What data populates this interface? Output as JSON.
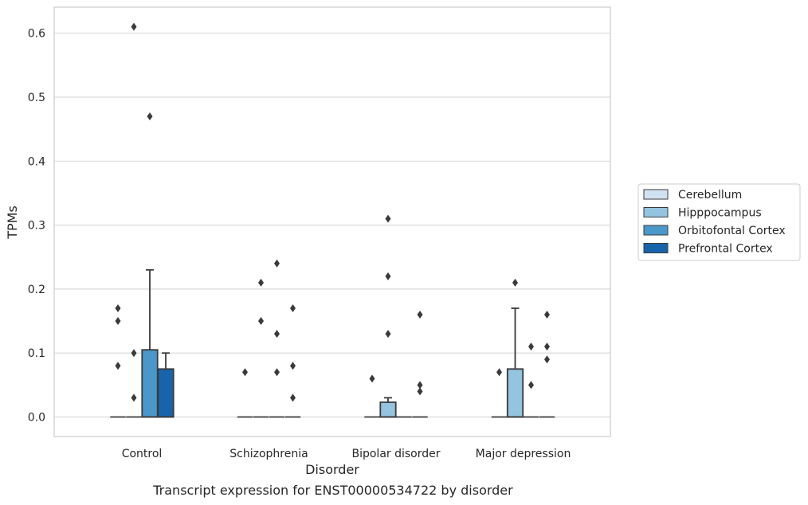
{
  "caption": "Transcript expression for ENST00000534722 by disorder",
  "chart_data": {
    "type": "box",
    "xlabel": "Disorder",
    "ylabel": "TPMs",
    "ylim": [
      -0.03,
      0.64
    ],
    "yticks": [
      0.0,
      0.1,
      0.2,
      0.3,
      0.4,
      0.5,
      0.6
    ],
    "ytick_labels": [
      "0.0",
      "0.1",
      "0.2",
      "0.3",
      "0.4",
      "0.5",
      "0.6"
    ],
    "grid": "horizontal",
    "legend_position": "right",
    "categories": [
      "Control",
      "Schizophrenia",
      "Bipolar disorder",
      "Major depression"
    ],
    "series": [
      {
        "name": "Cerebellum",
        "color": "#d0e1f2",
        "boxes": [
          {
            "category": "Control",
            "q1": 0,
            "median": 0,
            "q3": 0,
            "whisker_low": 0,
            "whisker_high": 0,
            "outliers": [
              0.08,
              0.15,
              0.17
            ]
          },
          {
            "category": "Schizophrenia",
            "q1": 0,
            "median": 0,
            "q3": 0,
            "whisker_low": 0,
            "whisker_high": 0,
            "outliers": [
              0.07
            ]
          },
          {
            "category": "Bipolar disorder",
            "q1": 0,
            "median": 0,
            "q3": 0,
            "whisker_low": 0,
            "whisker_high": 0,
            "outliers": [
              0.06
            ]
          },
          {
            "category": "Major depression",
            "q1": 0,
            "median": 0,
            "q3": 0,
            "whisker_low": 0,
            "whisker_high": 0,
            "outliers": [
              0.07
            ]
          }
        ]
      },
      {
        "name": "Hipppocampus",
        "color": "#94c4df",
        "boxes": [
          {
            "category": "Control",
            "q1": 0,
            "median": 0,
            "q3": 0,
            "whisker_low": 0,
            "whisker_high": 0,
            "outliers": [
              0.03,
              0.1,
              0.61
            ]
          },
          {
            "category": "Schizophrenia",
            "q1": 0,
            "median": 0,
            "q3": 0,
            "whisker_low": 0,
            "whisker_high": 0,
            "outliers": [
              0.15,
              0.21
            ]
          },
          {
            "category": "Bipolar disorder",
            "q1": 0,
            "median": 0,
            "q3": 0.023,
            "whisker_low": 0,
            "whisker_high": 0.03,
            "outliers": [
              0.13,
              0.22,
              0.31
            ]
          },
          {
            "category": "Major depression",
            "q1": 0,
            "median": 0,
            "q3": 0.075,
            "whisker_low": 0,
            "whisker_high": 0.17,
            "outliers": [
              0.21
            ]
          }
        ]
      },
      {
        "name": "Orbitofontal Cortex",
        "color": "#4a98c9",
        "boxes": [
          {
            "category": "Control",
            "q1": 0,
            "median": 0,
            "q3": 0.105,
            "whisker_low": 0,
            "whisker_high": 0.23,
            "outliers": [
              0.47
            ]
          },
          {
            "category": "Schizophrenia",
            "q1": 0,
            "median": 0,
            "q3": 0,
            "whisker_low": 0,
            "whisker_high": 0,
            "outliers": [
              0.07,
              0.13,
              0.24
            ]
          },
          {
            "category": "Bipolar disorder",
            "q1": 0,
            "median": 0,
            "q3": 0,
            "whisker_low": 0,
            "whisker_high": 0,
            "outliers": []
          },
          {
            "category": "Major depression",
            "q1": 0,
            "median": 0,
            "q3": 0,
            "whisker_low": 0,
            "whisker_high": 0,
            "outliers": [
              0.05,
              0.11
            ]
          }
        ]
      },
      {
        "name": "Prefrontal Cortex",
        "color": "#1764ab",
        "boxes": [
          {
            "category": "Control",
            "q1": 0,
            "median": 0,
            "q3": 0.075,
            "whisker_low": 0,
            "whisker_high": 0.1,
            "outliers": []
          },
          {
            "category": "Schizophrenia",
            "q1": 0,
            "median": 0,
            "q3": 0,
            "whisker_low": 0,
            "whisker_high": 0,
            "outliers": [
              0.03,
              0.08,
              0.17
            ]
          },
          {
            "category": "Bipolar disorder",
            "q1": 0,
            "median": 0,
            "q3": 0,
            "whisker_low": 0,
            "whisker_high": 0,
            "outliers": [
              0.04,
              0.05,
              0.16
            ]
          },
          {
            "category": "Major depression",
            "q1": 0,
            "median": 0,
            "q3": 0,
            "whisker_low": 0,
            "whisker_high": 0,
            "outliers": [
              0.09,
              0.11,
              0.16
            ]
          }
        ]
      }
    ]
  }
}
